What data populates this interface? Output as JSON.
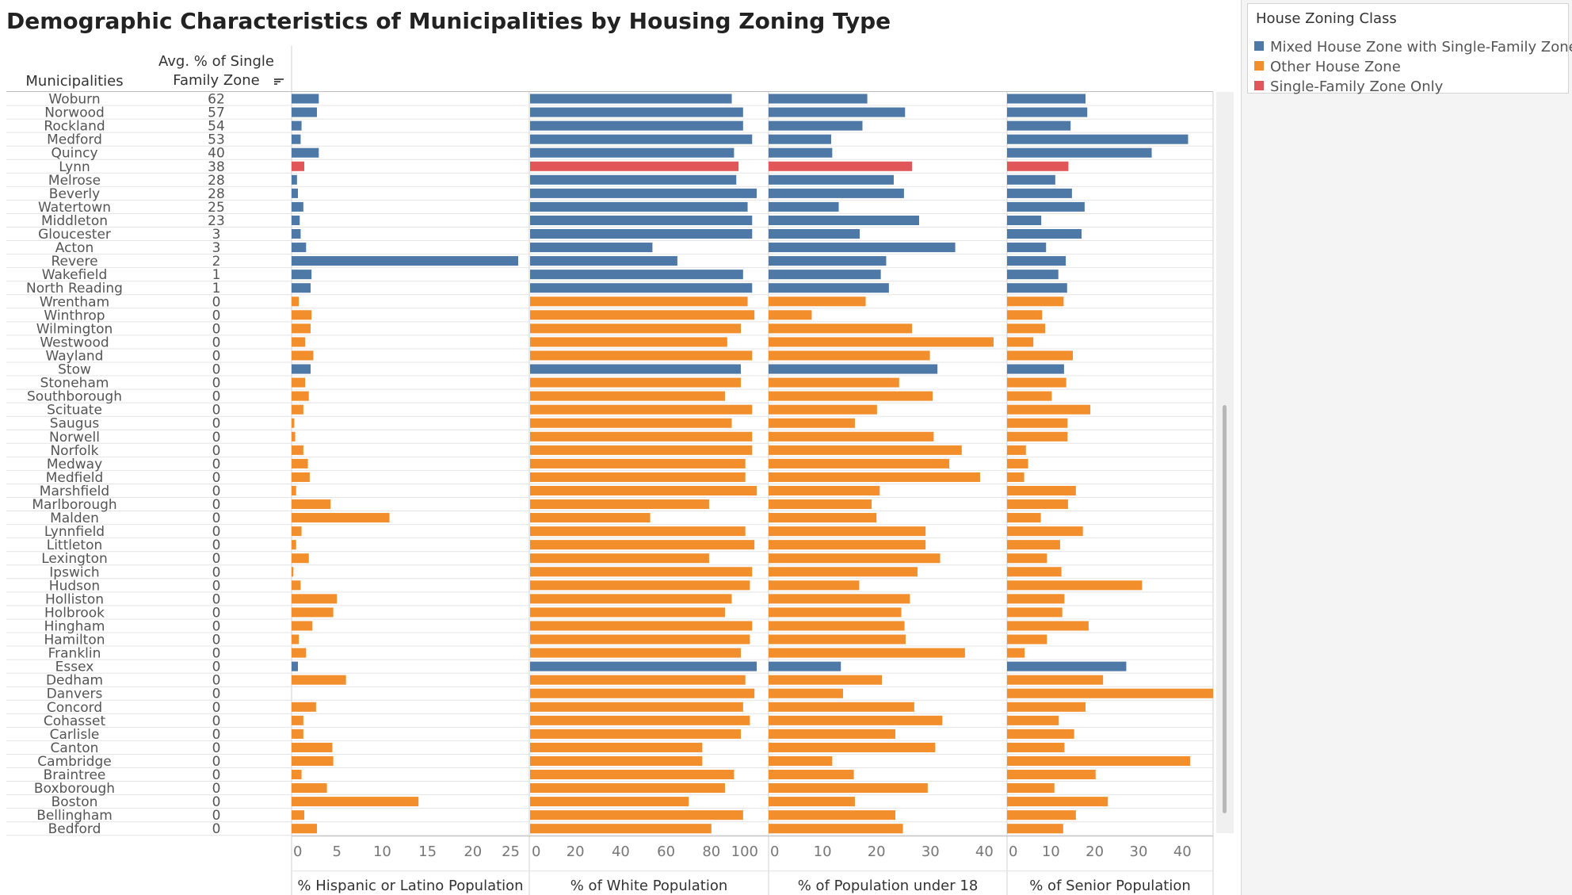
{
  "title": "Demographic Characteristics of Municipalities by Housing Zoning Type",
  "columns": {
    "municipalities_header": "Municipalities",
    "avg_header": "Avg. % of Single Family Zone"
  },
  "legend": {
    "title": "House Zoning Class",
    "items": [
      {
        "label": "Mixed House Zone with Single-Family Zone",
        "color": "#4e79a7"
      },
      {
        "label": "Other House Zone",
        "color": "#f28e2b"
      },
      {
        "label": "Single-Family Zone Only",
        "color": "#e15759"
      }
    ]
  },
  "chart_data": {
    "type": "bar",
    "orientation": "horizontal",
    "categories": [
      "Woburn",
      "Norwood",
      "Rockland",
      "Medford",
      "Quincy",
      "Lynn",
      "Melrose",
      "Beverly",
      "Watertown",
      "Middleton",
      "Gloucester",
      "Acton",
      "Revere",
      "Wakefield",
      "North Reading",
      "Wrentham",
      "Winthrop",
      "Wilmington",
      "Westwood",
      "Wayland",
      "Stow",
      "Stoneham",
      "Southborough",
      "Scituate",
      "Saugus",
      "Norwell",
      "Norfolk",
      "Medway",
      "Medfield",
      "Marshfield",
      "Marlborough",
      "Malden",
      "Lynnfield",
      "Littleton",
      "Lexington",
      "Ipswich",
      "Hudson",
      "Holliston",
      "Holbrook",
      "Hingham",
      "Hamilton",
      "Franklin",
      "Essex",
      "Dedham",
      "Danvers",
      "Concord",
      "Cohasset",
      "Carlisle",
      "Canton",
      "Cambridge",
      "Braintree",
      "Boxborough",
      "Boston",
      "Bellingham",
      "Bedford"
    ],
    "avg_single_family_zone": [
      62,
      57,
      54,
      53,
      40,
      38,
      28,
      28,
      25,
      23,
      3,
      3,
      2,
      1,
      1,
      0,
      0,
      0,
      0,
      0,
      0,
      0,
      0,
      0,
      0,
      0,
      0,
      0,
      0,
      0,
      0,
      0,
      0,
      0,
      0,
      0,
      0,
      0,
      0,
      0,
      0,
      0,
      0,
      0,
      0,
      0,
      0,
      0,
      0,
      0,
      0,
      0,
      0,
      0,
      0
    ],
    "zoning_class": [
      "Mixed House Zone with Single-Family Zone",
      "Mixed House Zone with Single-Family Zone",
      "Mixed House Zone with Single-Family Zone",
      "Mixed House Zone with Single-Family Zone",
      "Mixed House Zone with Single-Family Zone",
      "Single-Family Zone Only",
      "Mixed House Zone with Single-Family Zone",
      "Mixed House Zone with Single-Family Zone",
      "Mixed House Zone with Single-Family Zone",
      "Mixed House Zone with Single-Family Zone",
      "Mixed House Zone with Single-Family Zone",
      "Mixed House Zone with Single-Family Zone",
      "Mixed House Zone with Single-Family Zone",
      "Mixed House Zone with Single-Family Zone",
      "Mixed House Zone with Single-Family Zone",
      "Other House Zone",
      "Other House Zone",
      "Other House Zone",
      "Other House Zone",
      "Other House Zone",
      "Mixed House Zone with Single-Family Zone",
      "Other House Zone",
      "Other House Zone",
      "Other House Zone",
      "Other House Zone",
      "Other House Zone",
      "Other House Zone",
      "Other House Zone",
      "Other House Zone",
      "Other House Zone",
      "Other House Zone",
      "Other House Zone",
      "Other House Zone",
      "Other House Zone",
      "Other House Zone",
      "Other House Zone",
      "Other House Zone",
      "Other House Zone",
      "Other House Zone",
      "Other House Zone",
      "Other House Zone",
      "Other House Zone",
      "Mixed House Zone with Single-Family Zone",
      "Other House Zone",
      "Other House Zone",
      "Other House Zone",
      "Other House Zone",
      "Other House Zone",
      "Other House Zone",
      "Other House Zone",
      "Other House Zone",
      "Other House Zone",
      "Other House Zone",
      "Other House Zone",
      "Other House Zone"
    ],
    "panels": [
      {
        "xlabel": "% Hispanic or Latino Population",
        "xlim": [
          0,
          25
        ],
        "ticks": [
          0,
          5,
          10,
          15,
          20,
          25
        ],
        "values": [
          3.0,
          2.8,
          1.1,
          1.0,
          3.0,
          1.4,
          0.6,
          0.7,
          1.3,
          0.9,
          1.0,
          1.6,
          25.0,
          2.2,
          2.1,
          0.8,
          2.2,
          2.1,
          1.5,
          2.4,
          2.1,
          1.5,
          1.9,
          1.3,
          0.3,
          0.4,
          1.3,
          1.8,
          2.0,
          0.5,
          4.3,
          10.8,
          1.1,
          0.5,
          1.9,
          0.2,
          1.0,
          5.0,
          4.6,
          2.3,
          0.8,
          1.6,
          0.7,
          6.0,
          0.0,
          2.7,
          1.3,
          1.3,
          4.5,
          4.6,
          1.1,
          3.9,
          14.0,
          1.4,
          2.8
        ]
      },
      {
        "xlabel": "% of White Population",
        "xlim": [
          0,
          100
        ],
        "ticks": [
          0,
          20,
          40,
          60,
          80,
          100
        ],
        "values": [
          89,
          94,
          94,
          98,
          90,
          92,
          91,
          100,
          96,
          98,
          98,
          54,
          65,
          94,
          98,
          96,
          99,
          93,
          87,
          98,
          93,
          93,
          86,
          98,
          89,
          98,
          98,
          95,
          95,
          100,
          79,
          53,
          95,
          99,
          79,
          98,
          97,
          89,
          86,
          98,
          97,
          93,
          100,
          95,
          99,
          94,
          97,
          93,
          76,
          76,
          90,
          86,
          70,
          94,
          80
        ]
      },
      {
        "xlabel": "% of Population under 18",
        "xlim": [
          0,
          42
        ],
        "ticks": [
          0,
          10,
          20,
          30,
          40
        ],
        "values": [
          18.3,
          25.3,
          17.4,
          11.6,
          11.8,
          26.6,
          23.2,
          25.1,
          13.0,
          27.9,
          16.9,
          34.6,
          21.8,
          20.8,
          22.3,
          18.0,
          8.0,
          26.6,
          41.7,
          29.9,
          31.3,
          24.2,
          30.4,
          20.1,
          16.0,
          30.6,
          35.8,
          33.5,
          39.2,
          20.6,
          19.1,
          20.0,
          29.1,
          29.1,
          31.8,
          27.6,
          16.8,
          26.2,
          24.6,
          25.2,
          25.4,
          36.4,
          13.4,
          21.0,
          13.8,
          27.0,
          32.2,
          23.5,
          30.9,
          11.8,
          15.8,
          29.5,
          16.0,
          23.5,
          24.9
        ]
      },
      {
        "xlabel": "% of Senior Population",
        "xlim": [
          0,
          47
        ],
        "ticks": [
          0,
          10,
          20,
          30,
          40
        ],
        "values": [
          17.9,
          18.3,
          14.5,
          41.3,
          33.0,
          14.0,
          11.0,
          14.8,
          17.7,
          7.8,
          17.0,
          8.9,
          13.4,
          11.7,
          13.7,
          12.9,
          8.0,
          8.7,
          6.0,
          15.0,
          13.0,
          13.5,
          10.2,
          19.0,
          13.8,
          13.8,
          4.3,
          4.8,
          3.9,
          15.7,
          13.9,
          7.7,
          17.3,
          12.1,
          9.1,
          12.4,
          30.8,
          13.1,
          12.6,
          18.6,
          9.1,
          4.0,
          27.2,
          21.9,
          47.0,
          17.9,
          11.8,
          15.3,
          13.1,
          41.8,
          20.2,
          10.8,
          23.0,
          15.7,
          12.8
        ]
      }
    ]
  }
}
